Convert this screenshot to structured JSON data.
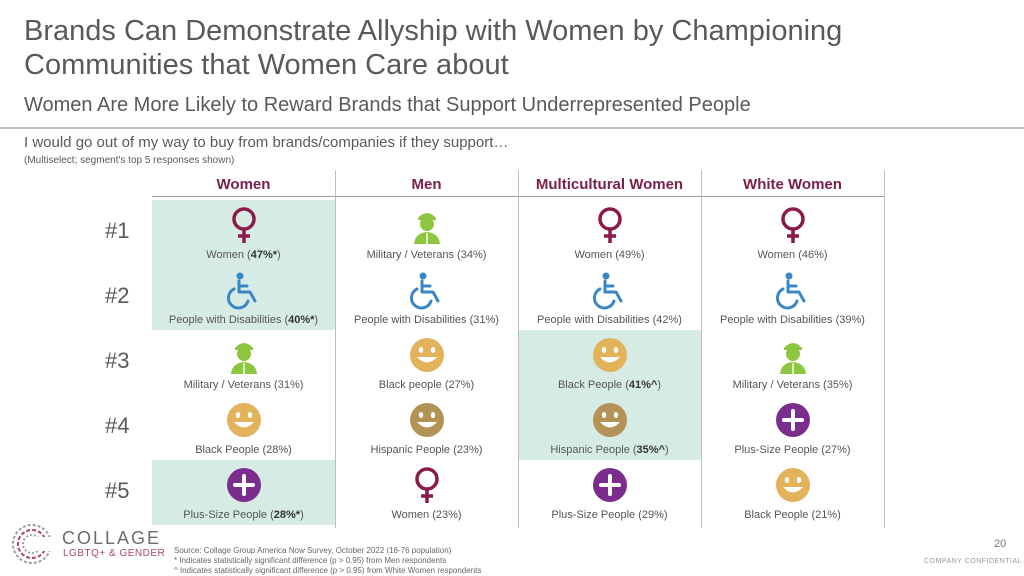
{
  "header": {
    "title": "Brands Can Demonstrate Allyship with Women by Championing Communities that Women Care about",
    "subtitle": "Women Are More Likely to Reward Brands that Support Underrepresented People",
    "question": "I would go out of my way to buy from brands/companies if they support…",
    "note": "(Multiselect; segment's top 5 responses shown)"
  },
  "columns": [
    "Women",
    "Men",
    "Multicultural Women",
    "White Women"
  ],
  "ranks": [
    "#1",
    "#2",
    "#3",
    "#4",
    "#5"
  ],
  "grid": [
    [
      {
        "icon": "female-symbol-icon",
        "pre": "Women (",
        "bold": "47%*",
        "post": ")",
        "highlight": true
      },
      {
        "icon": "soldier-icon",
        "pre": "Military / Veterans (34%)",
        "bold": "",
        "post": "",
        "highlight": false
      },
      {
        "icon": "female-symbol-icon",
        "pre": "Women (49%)",
        "bold": "",
        "post": "",
        "highlight": false
      },
      {
        "icon": "female-symbol-icon",
        "pre": "Women (46%)",
        "bold": "",
        "post": "",
        "highlight": false
      }
    ],
    [
      {
        "icon": "wheelchair-icon",
        "pre": "People with Disabilities (",
        "bold": "40%*",
        "post": ")",
        "highlight": true
      },
      {
        "icon": "wheelchair-icon",
        "pre": "People with Disabilities (31%)",
        "bold": "",
        "post": "",
        "highlight": false
      },
      {
        "icon": "wheelchair-icon",
        "pre": "People with Disabilities (42%)",
        "bold": "",
        "post": "",
        "highlight": false
      },
      {
        "icon": "wheelchair-icon",
        "pre": "People with Disabilities (39%)",
        "bold": "",
        "post": "",
        "highlight": false
      }
    ],
    [
      {
        "icon": "soldier-icon",
        "pre": "Military / Veterans (31%)",
        "bold": "",
        "post": "",
        "highlight": false
      },
      {
        "icon": "smiley-light-icon",
        "pre": "Black people (27%)",
        "bold": "",
        "post": "",
        "highlight": false
      },
      {
        "icon": "smiley-light-icon",
        "pre": "Black People (",
        "bold": "41%^",
        "post": ")",
        "highlight": true
      },
      {
        "icon": "soldier-icon",
        "pre": "Military / Veterans (35%)",
        "bold": "",
        "post": "",
        "highlight": false
      }
    ],
    [
      {
        "icon": "smiley-light-icon",
        "pre": "Black People (28%)",
        "bold": "",
        "post": "",
        "highlight": false
      },
      {
        "icon": "smiley-dark-icon",
        "pre": "Hispanic People (23%)",
        "bold": "",
        "post": "",
        "highlight": false
      },
      {
        "icon": "smiley-dark-icon",
        "pre": "Hispanic People (",
        "bold": "35%^",
        "post": ")",
        "highlight": true
      },
      {
        "icon": "plus-icon",
        "pre": "Plus-Size People (27%)",
        "bold": "",
        "post": "",
        "highlight": false
      }
    ],
    [
      {
        "icon": "plus-icon",
        "pre": "Plus-Size People (",
        "bold": "28%*",
        "post": ")",
        "highlight": true
      },
      {
        "icon": "female-symbol-icon",
        "pre": "Women (23%)",
        "bold": "",
        "post": "",
        "highlight": false
      },
      {
        "icon": "plus-icon",
        "pre": "Plus-Size People (29%)",
        "bold": "",
        "post": "",
        "highlight": false
      },
      {
        "icon": "smiley-light-icon",
        "pre": "Black People (21%)",
        "bold": "",
        "post": "",
        "highlight": false
      }
    ]
  ],
  "colors": {
    "maroon": "#8b1a4a",
    "green": "#8dc63f",
    "blue": "#3a87c8",
    "tan": "#e3b35c",
    "tan_dark": "#b39355",
    "purple": "#7b2d8e",
    "highlight": "#d7ebe5"
  },
  "footer": {
    "logo_line1": "COLLAGE",
    "logo_line2": "LGBTQ+ & GENDER",
    "source_lines": [
      "Source: Collage Group America Now Survey, October 2022 (18-76 population)",
      "* Indicates statistically significant difference (p > 0.95) from Men respondents",
      "^ Indicates statistically significant difference (p > 0.95) from White Women respondents"
    ],
    "page": "20",
    "confidential": "COMPANY CONFIDENTIAL"
  }
}
